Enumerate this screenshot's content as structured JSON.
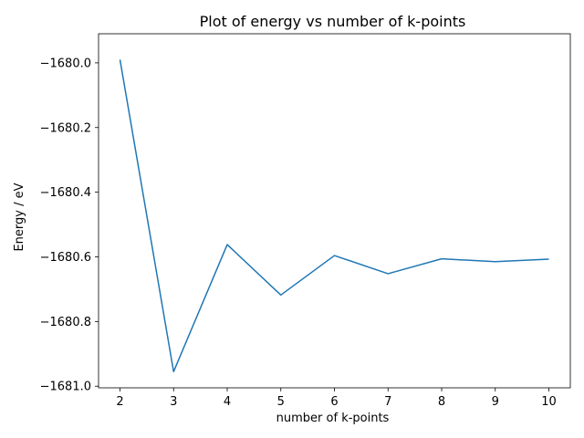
{
  "chart_data": {
    "type": "line",
    "title": "Plot of energy vs number of k-points",
    "xlabel": "number of k-points",
    "ylabel": "Energy / eV",
    "xlim": [
      1.6,
      10.4
    ],
    "ylim": [
      -1681.005,
      -1679.91
    ],
    "xticks": [
      "2",
      "3",
      "4",
      "5",
      "6",
      "7",
      "8",
      "9",
      "10"
    ],
    "xtick_values": [
      2,
      3,
      4,
      5,
      6,
      7,
      8,
      9,
      10
    ],
    "yticks": [
      "−1681.0",
      "−1680.8",
      "−1680.6",
      "−1680.4",
      "−1680.2",
      "−1680.0"
    ],
    "ytick_values": [
      -1681.0,
      -1680.8,
      -1680.6,
      -1680.4,
      -1680.2,
      -1680.0
    ],
    "grid": false,
    "series": [
      {
        "color": "#1f77b4",
        "x": [
          2,
          3,
          4,
          5,
          6,
          7,
          8,
          9,
          10
        ],
        "y": [
          -1679.99,
          -1680.955,
          -1680.562,
          -1680.718,
          -1680.596,
          -1680.652,
          -1680.606,
          -1680.615,
          -1680.607
        ]
      }
    ]
  }
}
